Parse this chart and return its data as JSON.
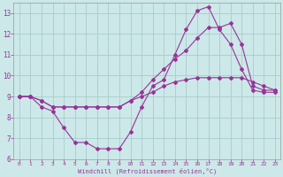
{
  "xlabel": "Windchill (Refroidissement éolien,°C)",
  "bg_color": "#cce8e8",
  "grid_color": "#aacccc",
  "line_color": "#993399",
  "xlim": [
    -0.5,
    23.5
  ],
  "ylim": [
    6,
    13.5
  ],
  "yticks": [
    6,
    7,
    8,
    9,
    10,
    11,
    12,
    13
  ],
  "xticks": [
    0,
    1,
    2,
    3,
    4,
    5,
    6,
    7,
    8,
    9,
    10,
    11,
    12,
    13,
    14,
    15,
    16,
    17,
    18,
    19,
    20,
    21,
    22,
    23
  ],
  "s1_x": [
    0,
    1,
    2,
    3,
    4,
    5,
    6,
    7,
    8,
    9,
    10,
    11,
    12,
    13,
    14,
    15,
    16,
    17,
    18,
    19,
    20,
    21,
    22,
    23
  ],
  "s1_y": [
    9.0,
    9.0,
    8.5,
    8.3,
    7.5,
    6.8,
    6.8,
    6.5,
    6.5,
    6.5,
    7.3,
    8.5,
    9.5,
    9.8,
    11.0,
    12.2,
    13.1,
    13.3,
    12.2,
    11.5,
    10.3,
    9.3,
    9.2,
    9.2
  ],
  "s2_x": [
    0,
    1,
    2,
    3,
    4,
    5,
    6,
    7,
    8,
    9,
    10,
    11,
    12,
    13,
    14,
    15,
    16,
    17,
    18,
    19,
    20,
    21,
    22,
    23
  ],
  "s2_y": [
    9.0,
    9.0,
    8.8,
    8.5,
    8.5,
    8.5,
    8.5,
    8.5,
    8.5,
    8.5,
    8.8,
    9.2,
    9.8,
    10.3,
    10.8,
    11.2,
    11.8,
    12.3,
    12.3,
    12.5,
    11.5,
    9.5,
    9.3,
    9.3
  ],
  "s3_x": [
    0,
    1,
    2,
    3,
    4,
    5,
    6,
    7,
    8,
    9,
    10,
    11,
    12,
    13,
    14,
    15,
    16,
    17,
    18,
    19,
    20,
    21,
    22,
    23
  ],
  "s3_y": [
    9.0,
    9.0,
    8.8,
    8.5,
    8.5,
    8.5,
    8.5,
    8.5,
    8.5,
    8.5,
    8.8,
    9.0,
    9.2,
    9.5,
    9.7,
    9.8,
    9.9,
    9.9,
    9.9,
    9.9,
    9.9,
    9.7,
    9.5,
    9.3
  ]
}
